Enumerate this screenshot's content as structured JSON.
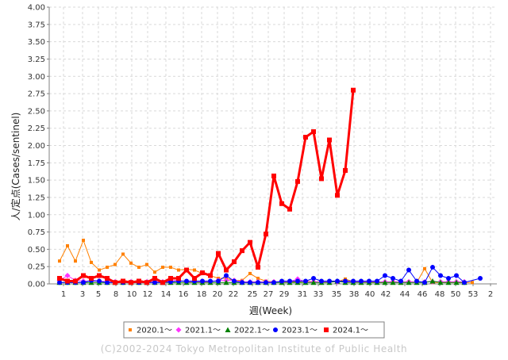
{
  "chart_data": {
    "type": "line",
    "xlabel": "週(Week)",
    "ylabel": "人/定点(Cases/sentinel)",
    "ylim": [
      0,
      4.0
    ],
    "y_ticks": [
      "0.00",
      "0.25",
      "0.50",
      "0.75",
      "1.00",
      "1.25",
      "1.50",
      "1.75",
      "2.00",
      "2.25",
      "2.50",
      "2.75",
      "3.00",
      "3.25",
      "3.50",
      "3.75",
      "4.00"
    ],
    "x_ticks": [
      "1",
      "3",
      "5",
      "8",
      "10",
      "12",
      "14",
      "16",
      "18",
      "20",
      "22",
      "25",
      "27",
      "29",
      "31",
      "33",
      "35",
      "38",
      "40",
      "42",
      "44",
      "46",
      "48",
      "50",
      "53",
      "2"
    ],
    "grid": true,
    "legend_position": "bottom",
    "copyright": "(C)2002-2024 Tokyo Metropolitan Institute of Public Health",
    "series": [
      {
        "name": "2020.1～",
        "color": "#ff8000",
        "marker": "rect-small",
        "line_width": 1,
        "points": [
          [
            0,
            0.33
          ],
          [
            1,
            0.55
          ],
          [
            2,
            0.33
          ],
          [
            3,
            0.63
          ],
          [
            4,
            0.31
          ],
          [
            5,
            0.2
          ],
          [
            6,
            0.24
          ],
          [
            7,
            0.28
          ],
          [
            8,
            0.43
          ],
          [
            9,
            0.3
          ],
          [
            10,
            0.24
          ],
          [
            11,
            0.28
          ],
          [
            12,
            0.17
          ],
          [
            13,
            0.24
          ],
          [
            14,
            0.24
          ],
          [
            15,
            0.2
          ],
          [
            16,
            0.21
          ],
          [
            17,
            0.2
          ],
          [
            18,
            0.15
          ],
          [
            19,
            0.12
          ],
          [
            20,
            0.08
          ],
          [
            21,
            0.08
          ],
          [
            22,
            0.05
          ],
          [
            23,
            0.05
          ],
          [
            24,
            0.15
          ],
          [
            25,
            0.08
          ],
          [
            26,
            0.04
          ],
          [
            27,
            0.03
          ],
          [
            28,
            0.03
          ],
          [
            29,
            0.03
          ],
          [
            30,
            0.03
          ],
          [
            31,
            0.04
          ],
          [
            32,
            0.03
          ],
          [
            33,
            0.03
          ],
          [
            34,
            0.03
          ],
          [
            35,
            0.03
          ],
          [
            36,
            0.07
          ],
          [
            37,
            0.03
          ],
          [
            38,
            0.03
          ],
          [
            39,
            0.02
          ],
          [
            40,
            0.02
          ],
          [
            41,
            0.02
          ],
          [
            42,
            0.03
          ],
          [
            43,
            0.02
          ],
          [
            44,
            0.03
          ],
          [
            45,
            0.02
          ],
          [
            46,
            0.22
          ],
          [
            47,
            0.02
          ],
          [
            48,
            0.02
          ],
          [
            49,
            0.02
          ],
          [
            50,
            0.02
          ],
          [
            51,
            0.02
          ],
          [
            52,
            0.02
          ]
        ]
      },
      {
        "name": "2021.1～",
        "color": "#ff33ff",
        "marker": "diamond",
        "line_width": 1,
        "points": [
          [
            0,
            0.05
          ],
          [
            1,
            0.12
          ],
          [
            2,
            0.05
          ],
          [
            3,
            0.04
          ],
          [
            4,
            0.04
          ],
          [
            5,
            0.04
          ],
          [
            6,
            0.03
          ],
          [
            7,
            0.03
          ],
          [
            8,
            0.03
          ],
          [
            9,
            0.03
          ],
          [
            10,
            0.03
          ],
          [
            11,
            0.03
          ],
          [
            12,
            0.03
          ],
          [
            13,
            0.03
          ],
          [
            14,
            0.04
          ],
          [
            15,
            0.05
          ],
          [
            16,
            0.03
          ],
          [
            17,
            0.03
          ],
          [
            18,
            0.03
          ],
          [
            19,
            0.03
          ],
          [
            20,
            0.05
          ],
          [
            21,
            0.05
          ],
          [
            22,
            0.05
          ],
          [
            23,
            0.03
          ],
          [
            24,
            0.03
          ],
          [
            25,
            0.03
          ],
          [
            26,
            0.03
          ],
          [
            27,
            0.03
          ],
          [
            28,
            0.03
          ],
          [
            29,
            0.03
          ],
          [
            30,
            0.07
          ],
          [
            31,
            0.03
          ],
          [
            32,
            0.03
          ],
          [
            33,
            0.03
          ],
          [
            34,
            0.03
          ],
          [
            35,
            0.03
          ],
          [
            36,
            0.03
          ],
          [
            37,
            0.03
          ],
          [
            38,
            0.03
          ],
          [
            39,
            0.03
          ],
          [
            40,
            0.03
          ],
          [
            41,
            0.03
          ],
          [
            42,
            0.03
          ],
          [
            43,
            0.03
          ],
          [
            44,
            0.03
          ],
          [
            45,
            0.03
          ],
          [
            46,
            0.03
          ],
          [
            47,
            0.03
          ],
          [
            48,
            0.03
          ],
          [
            49,
            0.03
          ],
          [
            50,
            0.03
          ],
          [
            51,
            0.03
          ]
        ]
      },
      {
        "name": "2022.1～",
        "color": "#008000",
        "marker": "triangle",
        "line_width": 1,
        "points": [
          [
            0,
            0.02
          ],
          [
            1,
            0.02
          ],
          [
            2,
            0.02
          ],
          [
            3,
            0.02
          ],
          [
            4,
            0.02
          ],
          [
            5,
            0.02
          ],
          [
            6,
            0.02
          ],
          [
            7,
            0.02
          ],
          [
            8,
            0.02
          ],
          [
            9,
            0.02
          ],
          [
            10,
            0.02
          ],
          [
            11,
            0.02
          ],
          [
            12,
            0.02
          ],
          [
            13,
            0.02
          ],
          [
            14,
            0.02
          ],
          [
            15,
            0.02
          ],
          [
            16,
            0.02
          ],
          [
            17,
            0.02
          ],
          [
            18,
            0.02
          ],
          [
            19,
            0.02
          ],
          [
            20,
            0.02
          ],
          [
            21,
            0.02
          ],
          [
            22,
            0.02
          ],
          [
            23,
            0.02
          ],
          [
            24,
            0.02
          ],
          [
            25,
            0.02
          ],
          [
            26,
            0.02
          ],
          [
            27,
            0.02
          ],
          [
            28,
            0.02
          ],
          [
            29,
            0.02
          ],
          [
            30,
            0.02
          ],
          [
            31,
            0.02
          ],
          [
            32,
            0.02
          ],
          [
            33,
            0.02
          ],
          [
            34,
            0.02
          ],
          [
            35,
            0.04
          ],
          [
            36,
            0.02
          ],
          [
            37,
            0.02
          ],
          [
            38,
            0.02
          ],
          [
            39,
            0.02
          ],
          [
            40,
            0.02
          ],
          [
            41,
            0.02
          ],
          [
            42,
            0.02
          ],
          [
            43,
            0.02
          ],
          [
            44,
            0.02
          ],
          [
            45,
            0.02
          ],
          [
            46,
            0.02
          ],
          [
            47,
            0.04
          ],
          [
            48,
            0.02
          ],
          [
            49,
            0.02
          ],
          [
            50,
            0.02
          ],
          [
            51,
            0.02
          ]
        ]
      },
      {
        "name": "2023.1～",
        "color": "#0000ff",
        "marker": "circle",
        "line_width": 1,
        "points": [
          [
            0,
            0.02
          ],
          [
            1,
            0.02
          ],
          [
            2,
            0.02
          ],
          [
            3,
            0.02
          ],
          [
            4,
            0.05
          ],
          [
            5,
            0.04
          ],
          [
            6,
            0.02
          ],
          [
            7,
            0.02
          ],
          [
            8,
            0.02
          ],
          [
            9,
            0.02
          ],
          [
            10,
            0.02
          ],
          [
            11,
            0.02
          ],
          [
            12,
            0.02
          ],
          [
            13,
            0.02
          ],
          [
            14,
            0.03
          ],
          [
            15,
            0.04
          ],
          [
            16,
            0.04
          ],
          [
            17,
            0.04
          ],
          [
            18,
            0.04
          ],
          [
            19,
            0.04
          ],
          [
            20,
            0.04
          ],
          [
            21,
            0.12
          ],
          [
            22,
            0.04
          ],
          [
            23,
            0.02
          ],
          [
            24,
            0.02
          ],
          [
            25,
            0.02
          ],
          [
            26,
            0.02
          ],
          [
            27,
            0.02
          ],
          [
            28,
            0.04
          ],
          [
            29,
            0.04
          ],
          [
            30,
            0.04
          ],
          [
            31,
            0.04
          ],
          [
            32,
            0.08
          ],
          [
            33,
            0.04
          ],
          [
            34,
            0.04
          ],
          [
            35,
            0.04
          ],
          [
            36,
            0.04
          ],
          [
            37,
            0.04
          ],
          [
            38,
            0.04
          ],
          [
            39,
            0.04
          ],
          [
            40,
            0.04
          ],
          [
            41,
            0.12
          ],
          [
            42,
            0.08
          ],
          [
            43,
            0.04
          ],
          [
            44,
            0.2
          ],
          [
            45,
            0.04
          ],
          [
            46,
            0.02
          ],
          [
            47,
            0.24
          ],
          [
            48,
            0.12
          ],
          [
            49,
            0.08
          ],
          [
            50,
            0.12
          ],
          [
            51,
            0.02
          ],
          [
            53,
            0.08
          ]
        ]
      },
      {
        "name": "2024.1～",
        "color": "#ff0000",
        "marker": "rect",
        "line_width": 3,
        "points": [
          [
            0,
            0.08
          ],
          [
            1,
            0.04
          ],
          [
            2,
            0.04
          ],
          [
            3,
            0.12
          ],
          [
            4,
            0.08
          ],
          [
            5,
            0.12
          ],
          [
            6,
            0.08
          ],
          [
            7,
            0.02
          ],
          [
            8,
            0.04
          ],
          [
            9,
            0.02
          ],
          [
            10,
            0.04
          ],
          [
            11,
            0.02
          ],
          [
            12,
            0.08
          ],
          [
            13,
            0.02
          ],
          [
            14,
            0.08
          ],
          [
            15,
            0.08
          ],
          [
            16,
            0.2
          ],
          [
            17,
            0.08
          ],
          [
            18,
            0.16
          ],
          [
            19,
            0.12
          ],
          [
            20,
            0.44
          ],
          [
            21,
            0.2
          ],
          [
            22,
            0.32
          ],
          [
            23,
            0.48
          ],
          [
            24,
            0.6
          ],
          [
            25,
            0.24
          ],
          [
            26,
            0.72
          ],
          [
            27,
            1.56
          ],
          [
            28,
            1.16
          ],
          [
            29,
            1.08
          ],
          [
            30,
            1.48
          ],
          [
            31,
            2.12
          ],
          [
            32,
            2.2
          ],
          [
            33,
            1.52
          ],
          [
            34,
            2.08
          ],
          [
            35,
            1.28
          ],
          [
            36,
            1.64
          ],
          [
            37,
            2.8
          ]
        ]
      }
    ]
  }
}
